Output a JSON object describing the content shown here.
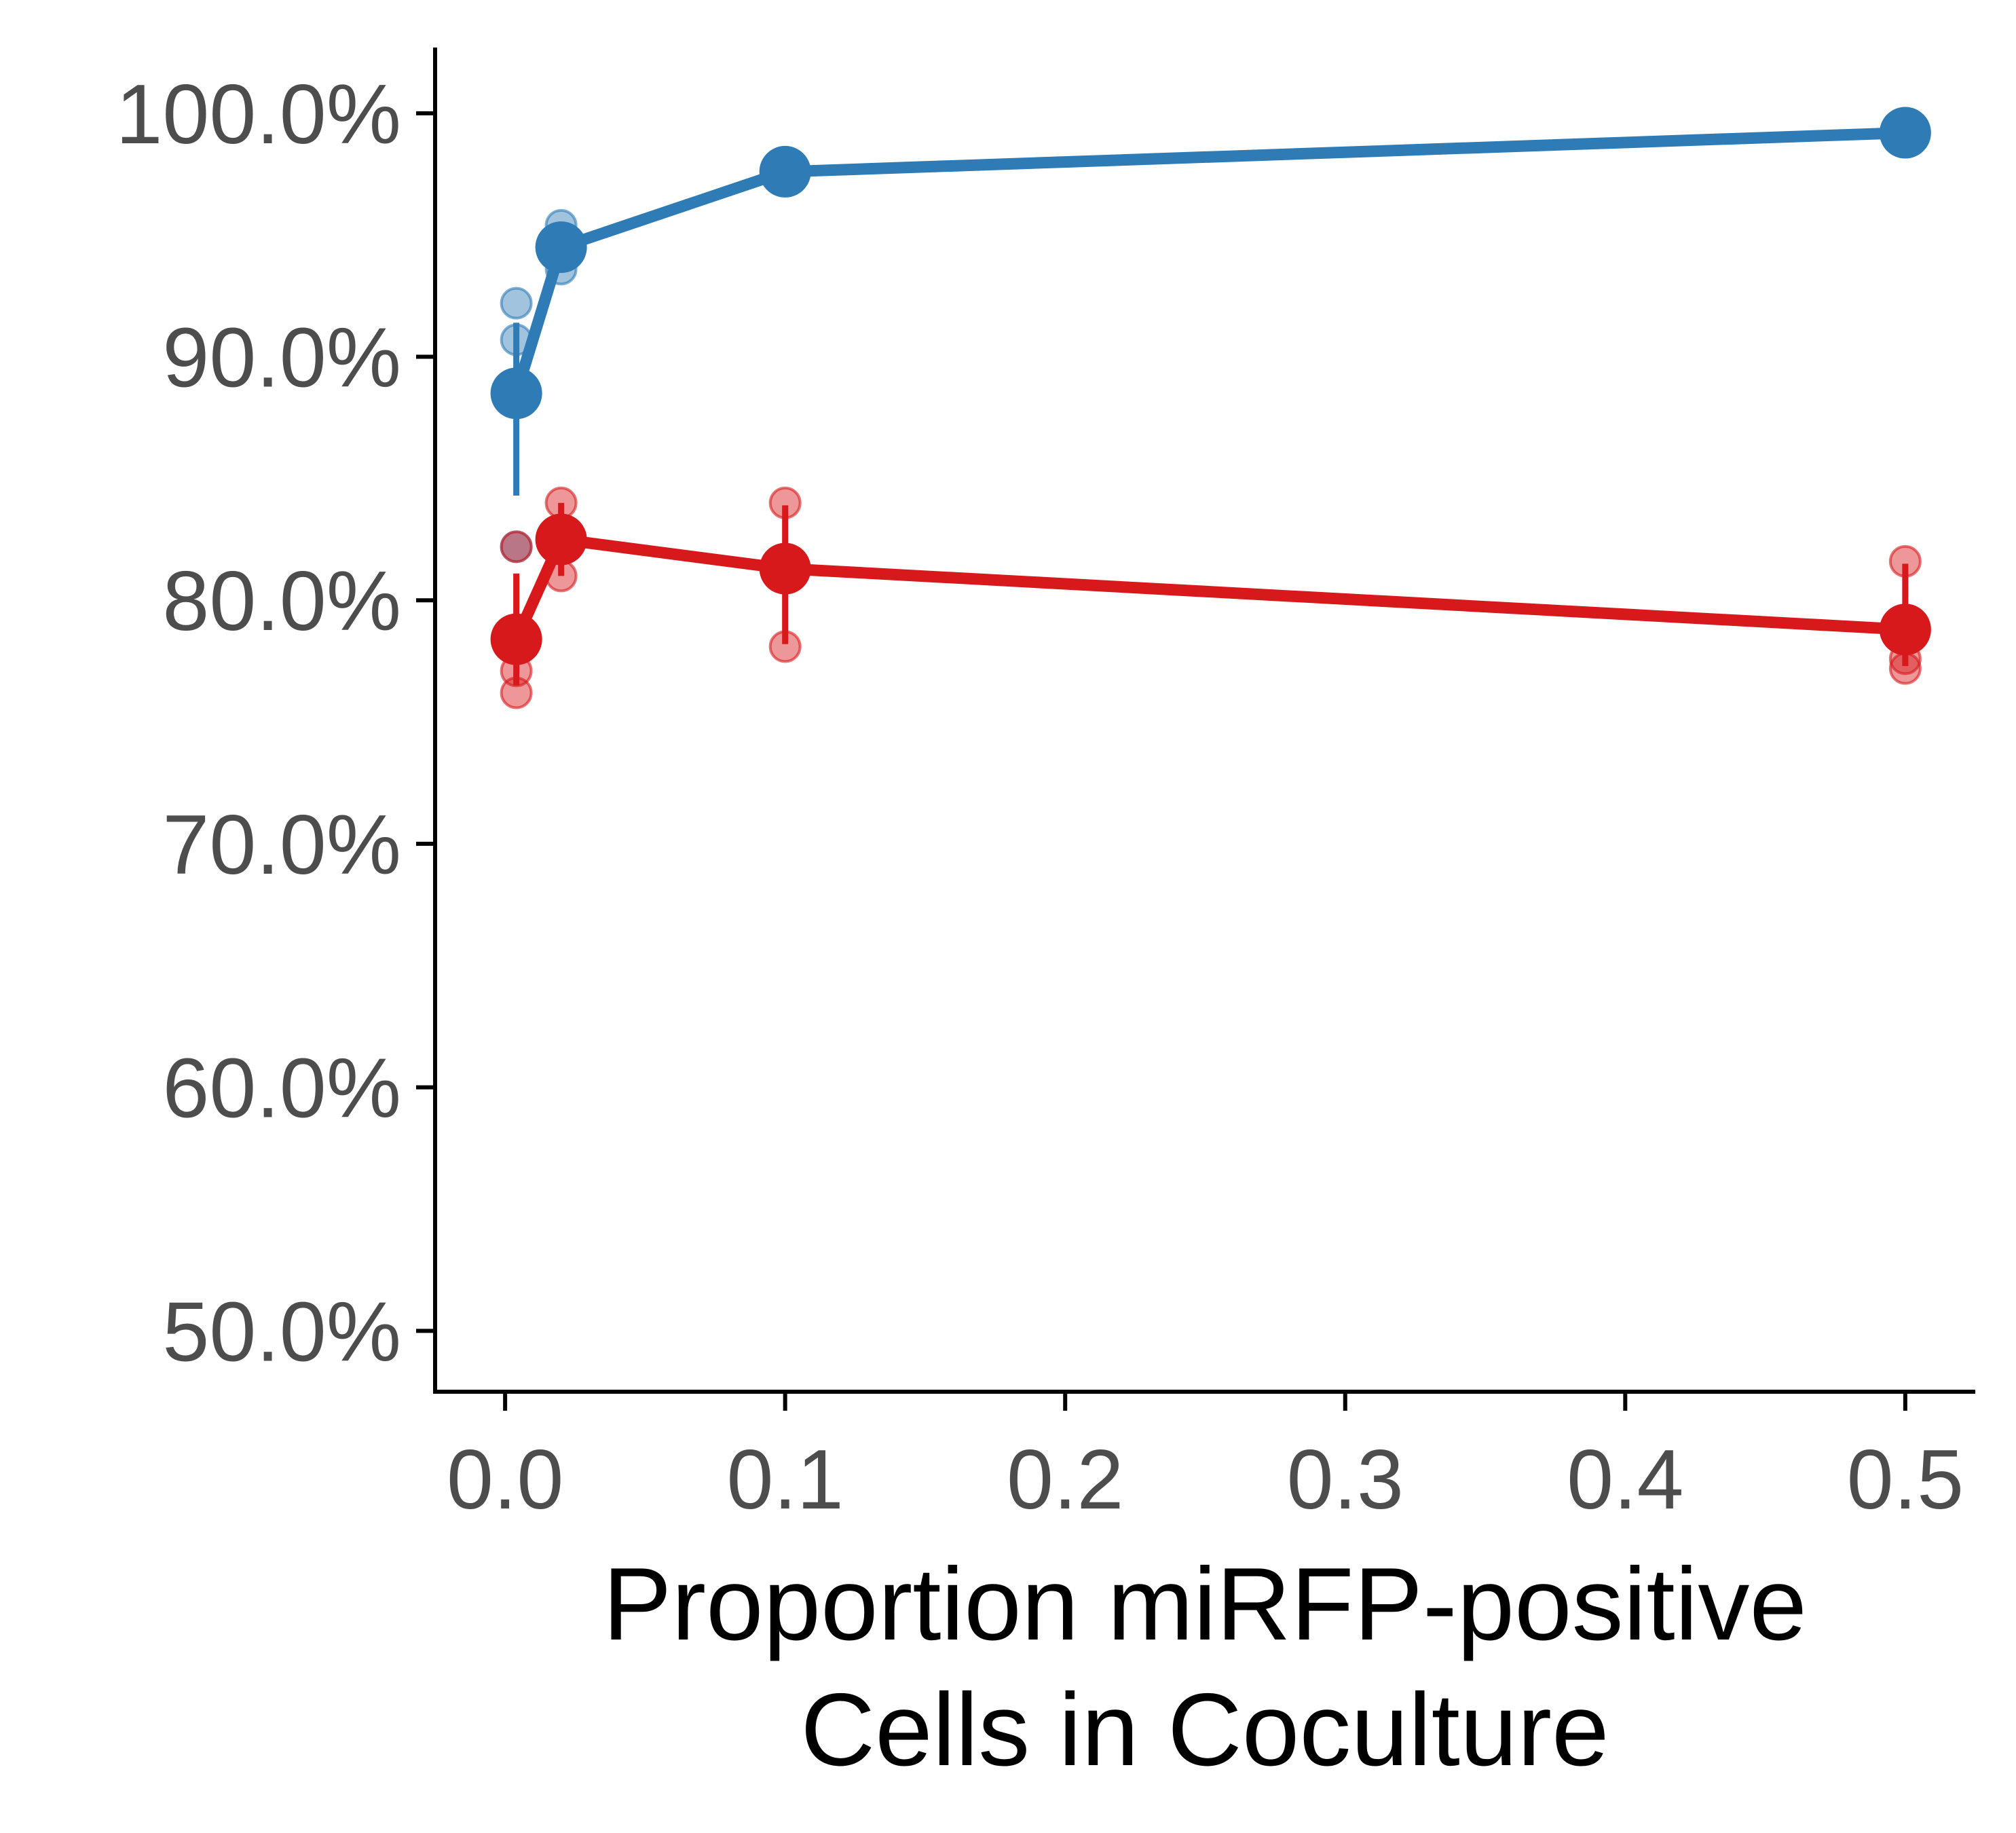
{
  "chart_data": {
    "type": "line",
    "title": "",
    "xlabel": "Proportion miRFP-positive",
    "xlabel_line2": "Cells in Coculture",
    "ylabel": "",
    "xlim": [
      -0.025,
      0.525
    ],
    "ylim": [
      47.5,
      102.7
    ],
    "x_ticks": [
      0.0,
      0.1,
      0.2,
      0.3,
      0.4,
      0.5
    ],
    "x_tick_labels": [
      "0.0",
      "0.1",
      "0.2",
      "0.3",
      "0.4",
      "0.5"
    ],
    "y_ticks": [
      50,
      60,
      70,
      80,
      90,
      100
    ],
    "y_tick_labels": [
      "50.0%",
      "60.0%",
      "70.0%",
      "80.0%",
      "90.0%",
      "100.0%"
    ],
    "grid": false,
    "legend": "none",
    "series": [
      {
        "color": "#2e7bb6",
        "x": [
          0.004,
          0.02,
          0.1,
          0.5
        ],
        "values": [
          88.5,
          94.5,
          97.6,
          99.2
        ],
        "error_low": [
          84.3,
          93.7,
          97.6,
          99.2
        ],
        "error_high": [
          91.4,
          95.3,
          97.6,
          99.2
        ],
        "replicates": [
          {
            "x": 0.004,
            "y": 92.2
          },
          {
            "x": 0.004,
            "y": 90.7
          },
          {
            "x": 0.004,
            "y": 82.2
          },
          {
            "x": 0.02,
            "y": 95.4
          },
          {
            "x": 0.02,
            "y": 94.5
          },
          {
            "x": 0.02,
            "y": 93.6
          },
          {
            "x": 0.1,
            "y": 97.6
          },
          {
            "x": 0.5,
            "y": 99.2
          }
        ]
      },
      {
        "color": "#d7191c",
        "x": [
          0.004,
          0.02,
          0.1,
          0.5
        ],
        "values": [
          78.4,
          82.5,
          81.3,
          78.8
        ],
        "error_low": [
          76.5,
          81.0,
          78.2,
          77.3
        ],
        "error_high": [
          81.1,
          84.0,
          83.9,
          81.5
        ],
        "replicates": [
          {
            "x": 0.004,
            "y": 82.2
          },
          {
            "x": 0.004,
            "y": 77.1
          },
          {
            "x": 0.004,
            "y": 76.2
          },
          {
            "x": 0.02,
            "y": 84.0
          },
          {
            "x": 0.02,
            "y": 82.5
          },
          {
            "x": 0.02,
            "y": 81.0
          },
          {
            "x": 0.1,
            "y": 84.0
          },
          {
            "x": 0.1,
            "y": 78.1
          },
          {
            "x": 0.5,
            "y": 81.6
          },
          {
            "x": 0.5,
            "y": 77.6
          },
          {
            "x": 0.5,
            "y": 77.2
          }
        ]
      }
    ]
  }
}
